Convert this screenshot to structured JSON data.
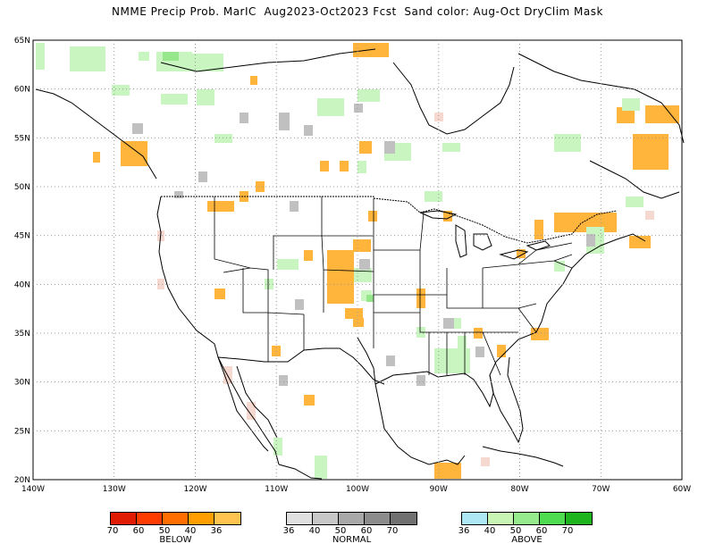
{
  "title": "NMME Precip Prob. MarIC  Aug2023-Oct2023 Fcst  Sand color: Aug-Oct DryClim Mask",
  "map": {
    "lat_labels": [
      "65N",
      "60N",
      "55N",
      "50N",
      "45N",
      "40N",
      "35N",
      "30N",
      "25N",
      "20N"
    ],
    "lon_labels": [
      "140W",
      "130W",
      "120W",
      "110W",
      "100W",
      "90W",
      "80W",
      "70W",
      "60W"
    ],
    "extent": {
      "lon": [
        -140,
        -60
      ],
      "lat": [
        20,
        65
      ]
    },
    "colors": {
      "sand": "#ffb43c",
      "light_green": "#c8f5c0",
      "gray": "#c0c0c0",
      "pink": "#f5d8d0",
      "green": "#96e68c"
    }
  },
  "legends": {
    "below": {
      "label": "BELOW",
      "ticks": [
        "70",
        "60",
        "50",
        "40",
        "36"
      ],
      "colors": [
        "#e11c04",
        "#ff3c00",
        "#ff6e00",
        "#ff9e00",
        "#ffc350"
      ]
    },
    "normal": {
      "label": "NORMAL",
      "ticks": [
        "36",
        "40",
        "50",
        "60",
        "70"
      ],
      "colors": [
        "#e0e0e0",
        "#c8c8c8",
        "#a8a8a8",
        "#8c8c8c",
        "#707070"
      ]
    },
    "above": {
      "label": "ABOVE",
      "ticks": [
        "36",
        "40",
        "50",
        "60",
        "70"
      ],
      "colors": [
        "#aee8f5",
        "#c8f5b4",
        "#96eb8c",
        "#50dc50",
        "#1eb41e"
      ]
    }
  }
}
